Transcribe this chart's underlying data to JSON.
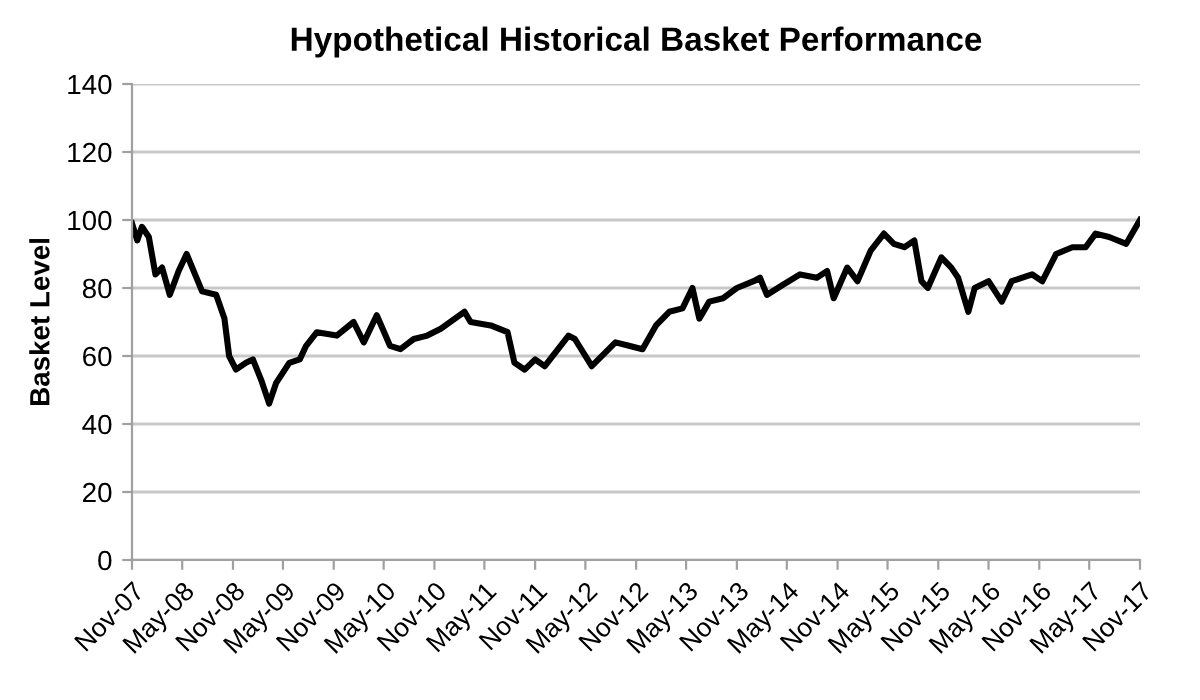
{
  "chart_data": {
    "type": "line",
    "title": "Hypothetical Historical Basket Performance",
    "ylabel": "Basket Level",
    "x": [
      "2007-11-01",
      "2007-11-20",
      "2007-12-07",
      "2008-01-01",
      "2008-01-25",
      "2008-02-18",
      "2008-03-17",
      "2008-04-18",
      "2008-05-17",
      "2008-07-12",
      "2008-09-01",
      "2008-10-01",
      "2008-10-18",
      "2008-11-12",
      "2008-12-18",
      "2009-01-12",
      "2009-02-11",
      "2009-03-12",
      "2009-04-06",
      "2009-05-24",
      "2009-07-01",
      "2009-07-24",
      "2009-09-01",
      "2009-11-12",
      "2010-01-12",
      "2010-02-18",
      "2010-04-06",
      "2010-05-24",
      "2010-07-01",
      "2010-08-18",
      "2010-10-06",
      "2010-11-24",
      "2011-02-18",
      "2011-03-12",
      "2011-05-24",
      "2011-07-24",
      "2011-08-18",
      "2011-09-24",
      "2011-11-01",
      "2011-12-06",
      "2012-03-01",
      "2012-03-24",
      "2012-05-24",
      "2012-08-18",
      "2012-10-06",
      "2012-11-24",
      "2013-01-12",
      "2013-03-01",
      "2013-04-18",
      "2013-05-24",
      "2013-06-18",
      "2013-07-24",
      "2013-09-12",
      "2013-11-01",
      "2014-01-01",
      "2014-01-24",
      "2014-02-18",
      "2014-04-18",
      "2014-06-18",
      "2014-08-18",
      "2014-09-24",
      "2014-10-18",
      "2014-12-06",
      "2015-01-12",
      "2015-03-01",
      "2015-04-18",
      "2015-05-24",
      "2015-07-01",
      "2015-08-06",
      "2015-09-01",
      "2015-09-24",
      "2015-11-12",
      "2015-12-18",
      "2016-01-12",
      "2016-02-18",
      "2016-03-12",
      "2016-05-01",
      "2016-06-18",
      "2016-07-24",
      "2016-10-06",
      "2016-11-12",
      "2017-01-01",
      "2017-03-01",
      "2017-04-18",
      "2017-05-24",
      "2017-07-12",
      "2017-09-12",
      "2017-11-01"
    ],
    "series": [
      {
        "color": "#000000",
        "values": [
          99,
          94,
          98,
          95,
          84,
          86,
          78,
          85,
          90,
          79,
          78,
          71,
          60,
          56,
          58,
          59,
          53,
          46,
          52,
          58,
          59,
          63,
          67,
          66,
          70,
          64,
          72,
          63,
          62,
          65,
          66,
          68,
          73,
          70,
          69,
          67,
          58,
          56,
          59,
          57,
          66,
          65,
          57,
          64,
          63,
          62,
          69,
          73,
          74,
          80,
          71,
          76,
          77,
          80,
          82,
          83,
          78,
          81,
          84,
          83,
          85,
          77,
          86,
          82,
          91,
          96,
          93,
          92,
          94,
          82,
          80,
          89,
          86,
          83,
          73,
          80,
          82,
          76,
          82,
          84,
          82,
          90,
          92,
          92,
          96,
          95,
          93,
          100
        ]
      }
    ],
    "xlim": [
      "2007-11-01",
      "2017-11-01"
    ],
    "xticks": [
      {
        "value": "2007-11-01",
        "label": "Nov-07"
      },
      {
        "value": "2008-05-01",
        "label": "May-08"
      },
      {
        "value": "2008-11-01",
        "label": "Nov-08"
      },
      {
        "value": "2009-05-01",
        "label": "May-09"
      },
      {
        "value": "2009-11-01",
        "label": "Nov-09"
      },
      {
        "value": "2010-05-01",
        "label": "May-10"
      },
      {
        "value": "2010-11-01",
        "label": "Nov-10"
      },
      {
        "value": "2011-05-01",
        "label": "May-11"
      },
      {
        "value": "2011-11-01",
        "label": "Nov-11"
      },
      {
        "value": "2012-05-01",
        "label": "May-12"
      },
      {
        "value": "2012-11-01",
        "label": "Nov-12"
      },
      {
        "value": "2013-05-01",
        "label": "May-13"
      },
      {
        "value": "2013-11-01",
        "label": "Nov-13"
      },
      {
        "value": "2014-05-01",
        "label": "May-14"
      },
      {
        "value": "2014-11-01",
        "label": "Nov-14"
      },
      {
        "value": "2015-05-01",
        "label": "May-15"
      },
      {
        "value": "2015-11-01",
        "label": "Nov-15"
      },
      {
        "value": "2016-05-01",
        "label": "May-16"
      },
      {
        "value": "2016-11-01",
        "label": "Nov-16"
      },
      {
        "value": "2017-05-01",
        "label": "May-17"
      },
      {
        "value": "2017-11-01",
        "label": "Nov-17"
      }
    ],
    "ylim": [
      0,
      140
    ],
    "yticks": [
      0,
      20,
      40,
      60,
      80,
      100,
      120,
      140
    ],
    "grid": "y",
    "marker": "none",
    "line_style": "solid"
  }
}
